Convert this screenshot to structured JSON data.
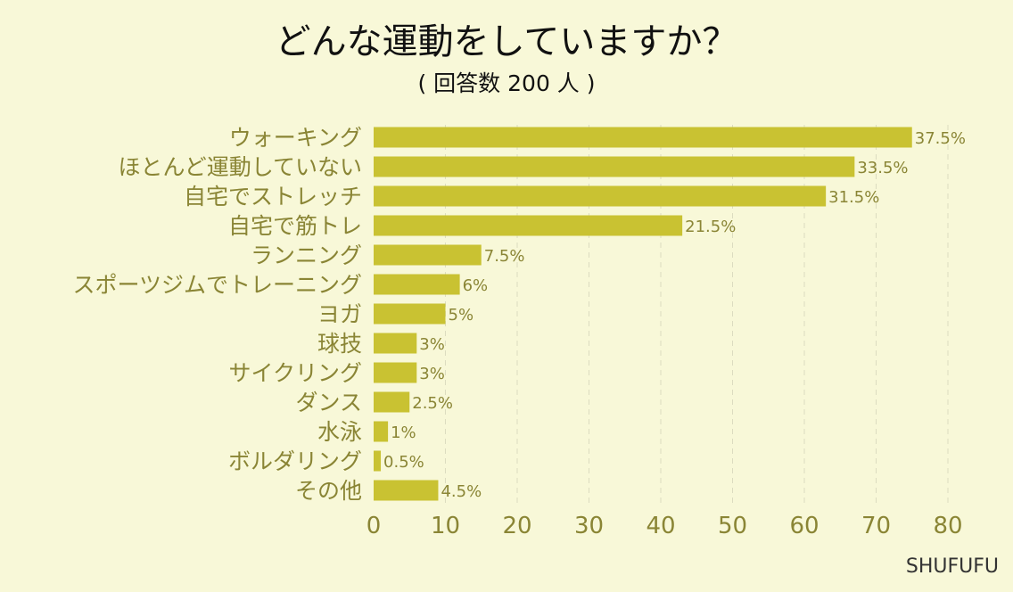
{
  "chart_data": {
    "type": "bar",
    "orientation": "horizontal",
    "title": "どんな運動をしていますか？",
    "subtitle": "( 回答数 200 人 )",
    "categories": [
      "ウォーキング",
      "ほとんど運動していない",
      "自宅でストレッチ",
      "自宅で筋トレ",
      "ランニング",
      "スポーツジムでトレーニング",
      "ヨガ",
      "球技",
      "サイクリング",
      "ダンス",
      "水泳",
      "ボルダリング",
      "その他"
    ],
    "values": [
      75,
      67,
      63,
      43,
      15,
      12,
      10,
      6,
      6,
      5,
      2,
      1,
      9
    ],
    "value_labels": [
      "37.5%",
      "33.5%",
      "31.5%",
      "21.5%",
      "7.5%",
      "6%",
      "5%",
      "3%",
      "3%",
      "2.5%",
      "1%",
      "0.5%",
      "4.5%"
    ],
    "x_ticks": [
      "0",
      "10",
      "20",
      "30",
      "40",
      "50",
      "60",
      "70",
      "80"
    ],
    "xlim": [
      0,
      80
    ],
    "grid": true,
    "bar_color": "#c9c232",
    "label_color": "#8a8535"
  },
  "brand": "SHUFUFU"
}
